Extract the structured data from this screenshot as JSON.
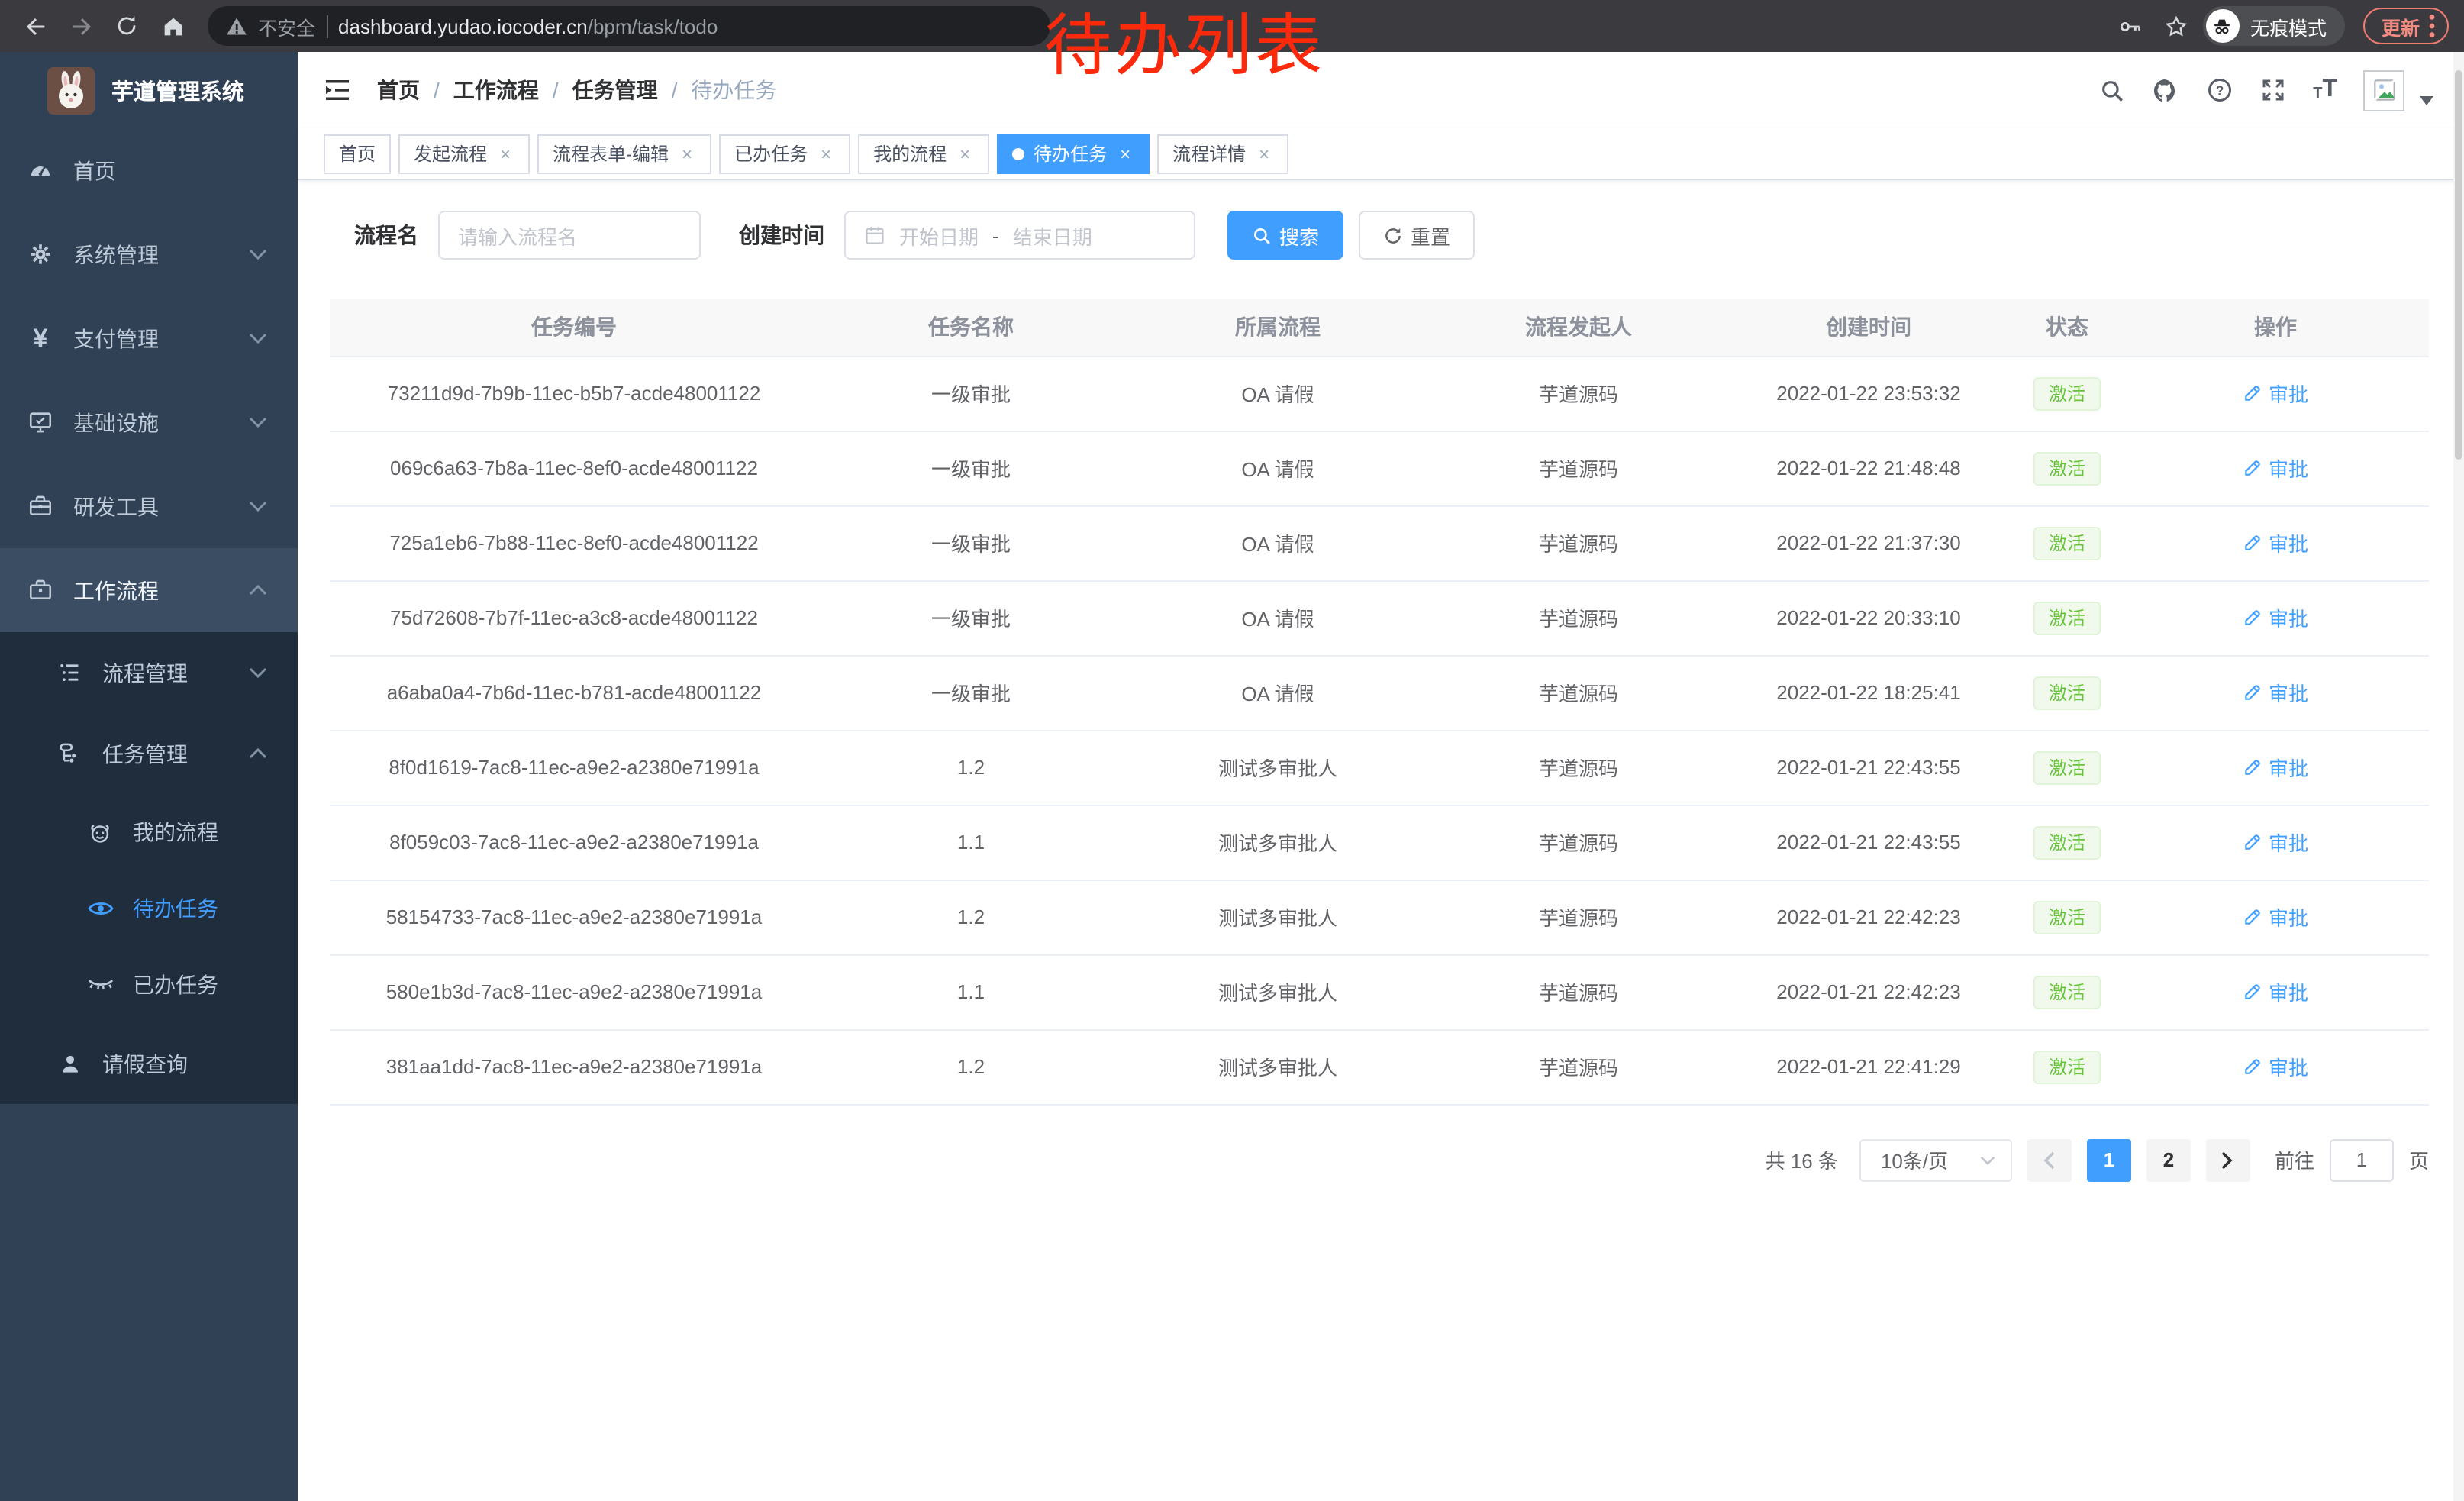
{
  "colors": {
    "primary": "#409eff",
    "success_text": "#67c23a",
    "success_bg": "#f0f9eb",
    "sidebar_bg": "#304156",
    "submenu_bg": "#1f2d3d",
    "annotation_red": "#fb2a0c",
    "chrome_bg": "#3b3b3f",
    "update_red": "#f28b82"
  },
  "annotation": "待办列表",
  "browser": {
    "security_label": "不安全",
    "url_host": "dashboard.yudao.iocoder.cn",
    "url_path": "/bpm/task/todo",
    "incognito_label": "无痕模式",
    "update_label": "更新"
  },
  "sidebar": {
    "title": "芋道管理系统",
    "items": [
      {
        "label": "首页"
      },
      {
        "label": "系统管理"
      },
      {
        "label": "支付管理"
      },
      {
        "label": "基础设施"
      },
      {
        "label": "研发工具"
      },
      {
        "label": "工作流程"
      },
      {
        "label": "流程管理"
      },
      {
        "label": "任务管理"
      },
      {
        "label": "我的流程"
      },
      {
        "label": "待办任务"
      },
      {
        "label": "已办任务"
      },
      {
        "label": "请假查询"
      }
    ]
  },
  "breadcrumb": [
    "首页",
    "工作流程",
    "任务管理",
    "待办任务"
  ],
  "tabs": [
    {
      "label": "首页",
      "closable": false,
      "active": false
    },
    {
      "label": "发起流程",
      "closable": true,
      "active": false
    },
    {
      "label": "流程表单-编辑",
      "closable": true,
      "active": false
    },
    {
      "label": "已办任务",
      "closable": true,
      "active": false
    },
    {
      "label": "我的流程",
      "closable": true,
      "active": false
    },
    {
      "label": "待办任务",
      "closable": true,
      "active": true
    },
    {
      "label": "流程详情",
      "closable": true,
      "active": false
    }
  ],
  "filters": {
    "name_label": "流程名",
    "name_placeholder": "请输入流程名",
    "time_label": "创建时间",
    "start_placeholder": "开始日期",
    "range_separator": "-",
    "end_placeholder": "结束日期",
    "search_label": "搜索",
    "reset_label": "重置"
  },
  "table": {
    "columns": [
      "任务编号",
      "任务名称",
      "所属流程",
      "流程发起人",
      "创建时间",
      "状态",
      "操作"
    ],
    "rows": [
      {
        "id": "73211d9d-7b9b-11ec-b5b7-acde48001122",
        "name": "一级审批",
        "process": "OA 请假",
        "initiator": "芋道源码",
        "time": "2022-01-22 23:53:32",
        "status": "激活",
        "action": "审批"
      },
      {
        "id": "069c6a63-7b8a-11ec-8ef0-acde48001122",
        "name": "一级审批",
        "process": "OA 请假",
        "initiator": "芋道源码",
        "time": "2022-01-22 21:48:48",
        "status": "激活",
        "action": "审批"
      },
      {
        "id": "725a1eb6-7b88-11ec-8ef0-acde48001122",
        "name": "一级审批",
        "process": "OA 请假",
        "initiator": "芋道源码",
        "time": "2022-01-22 21:37:30",
        "status": "激活",
        "action": "审批"
      },
      {
        "id": "75d72608-7b7f-11ec-a3c8-acde48001122",
        "name": "一级审批",
        "process": "OA 请假",
        "initiator": "芋道源码",
        "time": "2022-01-22 20:33:10",
        "status": "激活",
        "action": "审批"
      },
      {
        "id": "a6aba0a4-7b6d-11ec-b781-acde48001122",
        "name": "一级审批",
        "process": "OA 请假",
        "initiator": "芋道源码",
        "time": "2022-01-22 18:25:41",
        "status": "激活",
        "action": "审批"
      },
      {
        "id": "8f0d1619-7ac8-11ec-a9e2-a2380e71991a",
        "name": "1.2",
        "process": "测试多审批人",
        "initiator": "芋道源码",
        "time": "2022-01-21 22:43:55",
        "status": "激活",
        "action": "审批"
      },
      {
        "id": "8f059c03-7ac8-11ec-a9e2-a2380e71991a",
        "name": "1.1",
        "process": "测试多审批人",
        "initiator": "芋道源码",
        "time": "2022-01-21 22:43:55",
        "status": "激活",
        "action": "审批"
      },
      {
        "id": "58154733-7ac8-11ec-a9e2-a2380e71991a",
        "name": "1.2",
        "process": "测试多审批人",
        "initiator": "芋道源码",
        "time": "2022-01-21 22:42:23",
        "status": "激活",
        "action": "审批"
      },
      {
        "id": "580e1b3d-7ac8-11ec-a9e2-a2380e71991a",
        "name": "1.1",
        "process": "测试多审批人",
        "initiator": "芋道源码",
        "time": "2022-01-21 22:42:23",
        "status": "激活",
        "action": "审批"
      },
      {
        "id": "381aa1dd-7ac8-11ec-a9e2-a2380e71991a",
        "name": "1.2",
        "process": "测试多审批人",
        "initiator": "芋道源码",
        "time": "2022-01-21 22:41:29",
        "status": "激活",
        "action": "审批"
      }
    ]
  },
  "pagination": {
    "total": "共 16 条",
    "page_size": "10条/页",
    "pages": [
      "1",
      "2"
    ],
    "active_page": "1",
    "goto_label": "前往",
    "goto_value": "1",
    "unit_label": "页"
  }
}
